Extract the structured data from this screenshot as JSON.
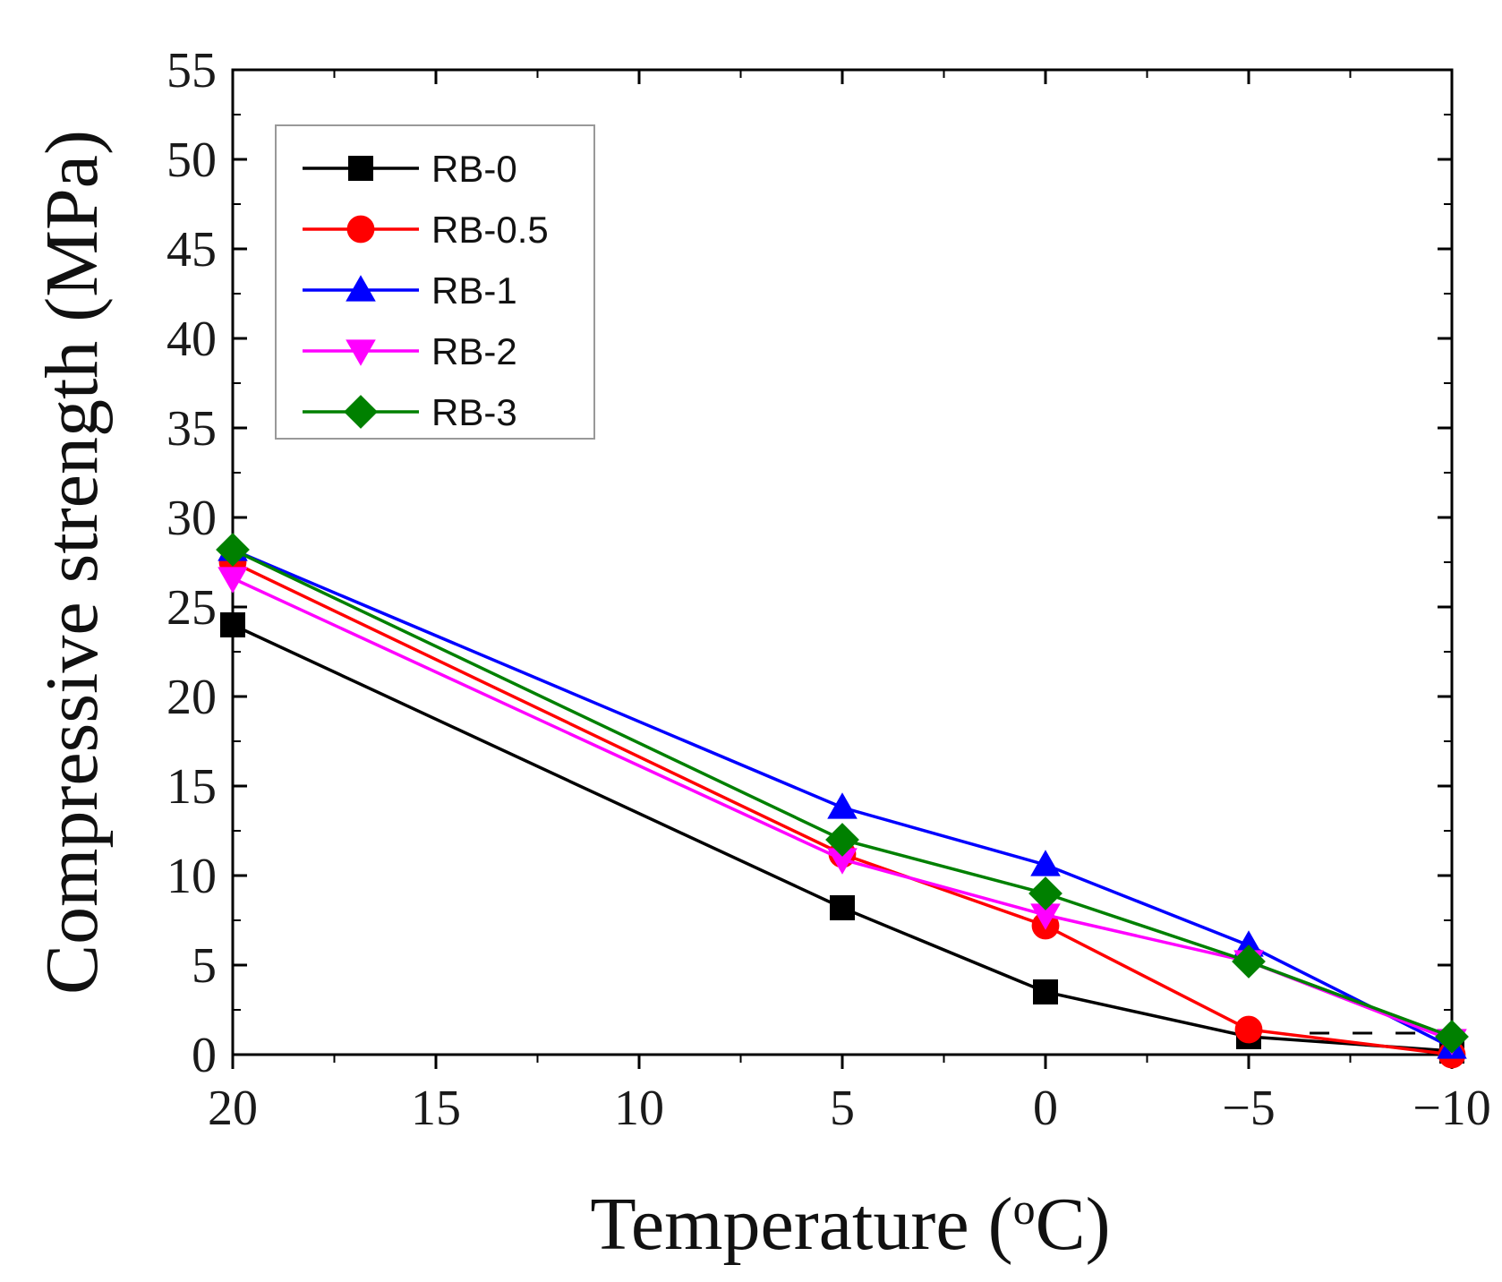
{
  "chart_data": {
    "type": "line",
    "title": "",
    "xlabel": "Temperature (",
    "xlabel_sup": "o",
    "xlabel_end": "C)",
    "ylabel": "Compressive strength (MPa)",
    "x": [
      20,
      5,
      0,
      -5,
      -10
    ],
    "xlim": [
      20,
      -10
    ],
    "ylim": [
      0,
      55
    ],
    "x_ticks": [
      20,
      15,
      10,
      5,
      0,
      -5,
      -10
    ],
    "x_tick_labels": [
      "20",
      "15",
      "10",
      "5",
      "0",
      "−5",
      "−10"
    ],
    "y_ticks": [
      0,
      5,
      10,
      15,
      20,
      25,
      30,
      35,
      40,
      45,
      50,
      55
    ],
    "y_tick_labels": [
      "0",
      "5",
      "10",
      "15",
      "20",
      "25",
      "30",
      "35",
      "40",
      "45",
      "50",
      "55"
    ],
    "grid": false,
    "legend_position": "top-left",
    "reference_line": {
      "y": 1.2,
      "style": "dashed",
      "color": "#000000"
    },
    "series": [
      {
        "name": "RB-0",
        "color": "#000000",
        "marker": "square",
        "values": [
          24.0,
          8.2,
          3.5,
          1.0,
          0.2
        ]
      },
      {
        "name": "RB-0.5",
        "color": "#ff0000",
        "marker": "circle",
        "values": [
          27.5,
          11.2,
          7.2,
          1.4,
          0.0
        ]
      },
      {
        "name": "RB-1",
        "color": "#0000ff",
        "marker": "triangle-up",
        "values": [
          28.2,
          13.8,
          10.6,
          6.1,
          0.4
        ]
      },
      {
        "name": "RB-2",
        "color": "#ff00ff",
        "marker": "triangle-down",
        "values": [
          26.6,
          10.9,
          7.8,
          5.2,
          0.8
        ]
      },
      {
        "name": "RB-3",
        "color": "#008000",
        "marker": "diamond",
        "values": [
          28.2,
          12.0,
          9.0,
          5.2,
          1.0
        ]
      }
    ]
  }
}
